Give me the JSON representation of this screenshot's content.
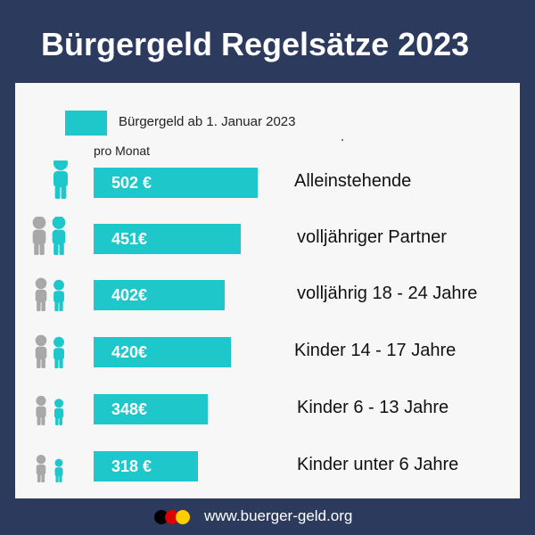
{
  "header": {
    "title": "Bürgergeld Regelsätze 2023"
  },
  "chart_data": {
    "type": "bar",
    "orientation": "horizontal",
    "legend": [
      "Bürgergeld ab 1. Januar 2023"
    ],
    "unit_label": "pro Monat",
    "categories": [
      "Alleinstehende",
      "volljähriger Partner",
      "volljährig 18 - 24 Jahre",
      "Kinder 14 - 17 Jahre",
      "Kinder 6 - 13 Jahre",
      "Kinder unter 6 Jahre"
    ],
    "values": [
      502,
      451,
      402,
      420,
      348,
      318
    ],
    "value_labels": [
      "502 €",
      "451€",
      "402€",
      "420€",
      "348€",
      "318 €"
    ],
    "series_color": "#1ec7c9"
  },
  "footer": {
    "url": "www.buerger-geld.org"
  },
  "colors": {
    "background": "#2c3a5e",
    "panel": "#f7f7f7",
    "accent": "#1ec7c9",
    "adult_icon": "#a8a8a8",
    "flag": [
      "#000000",
      "#dd0000",
      "#ffce00"
    ]
  }
}
